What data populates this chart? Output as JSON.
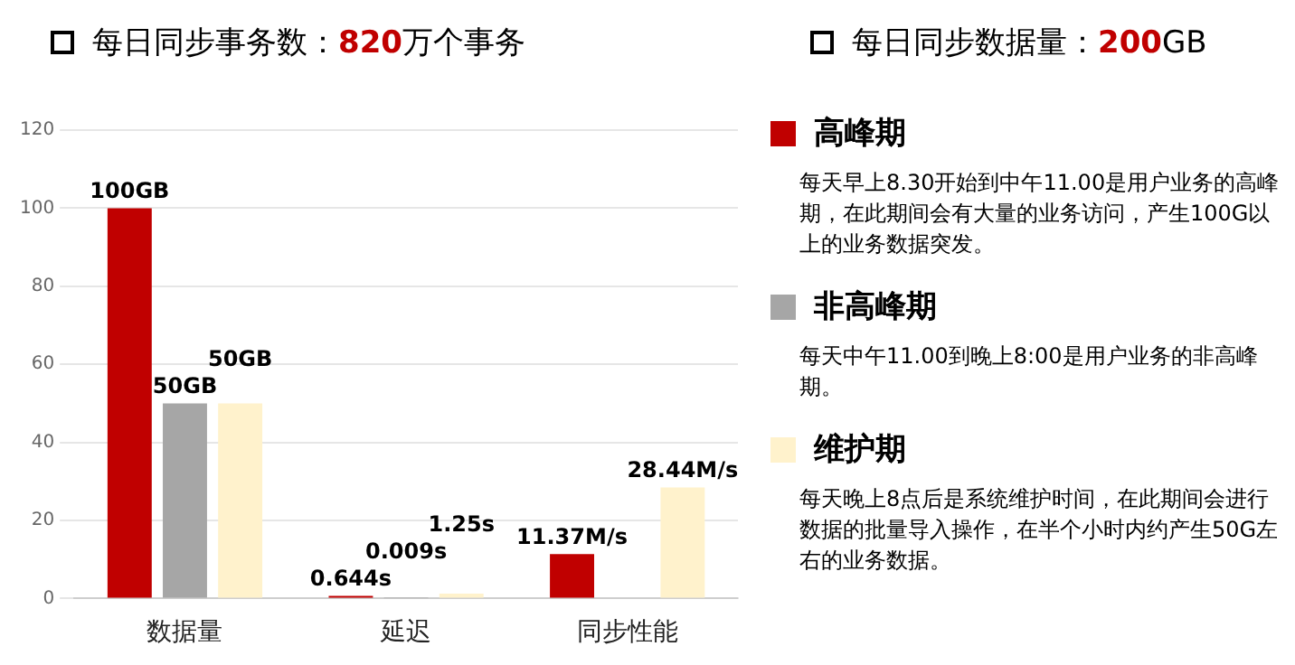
{
  "chart_data": {
    "type": "bar",
    "title": "每日同步事务数：820万个事务",
    "subtitle": "每日同步数据量：200GB",
    "categories": [
      "数据量",
      "延迟",
      "同步性能"
    ],
    "series": [
      {
        "name": "高峰期",
        "color": "#c00000",
        "values": [
          100,
          0.644,
          11.37
        ],
        "value_labels": [
          "100GB",
          "0.644s",
          "11.37M/s"
        ]
      },
      {
        "name": "非高峰期",
        "color": "#a6a6a6",
        "values": [
          50,
          0.009,
          null
        ],
        "value_labels": [
          "50GB",
          "0.009s",
          null
        ]
      },
      {
        "name": "维护期",
        "color": "#fff2cc",
        "values": [
          50,
          1.25,
          28.44
        ],
        "value_labels": [
          "50GB",
          "1.25s",
          "28.44M/s"
        ]
      }
    ],
    "ylim": [
      0,
      120
    ],
    "yticks": [
      0,
      20,
      40,
      60,
      80,
      100,
      120
    ],
    "grid": "y",
    "legend": "right",
    "annotations": [
      "每天早上8.30开始到中午11.00是用户业务的高峰期，在此期间会有大量的业务访问，产生100G以上的业务数据突发。",
      "每天中午11.00到晚上8:00是用户业务的非高峰期。",
      "每天晚上8点后是系统维护时间，在此期间会进行数据的批量导入操作，在半个小时内约产生50G左右的业务数据。"
    ]
  }
}
